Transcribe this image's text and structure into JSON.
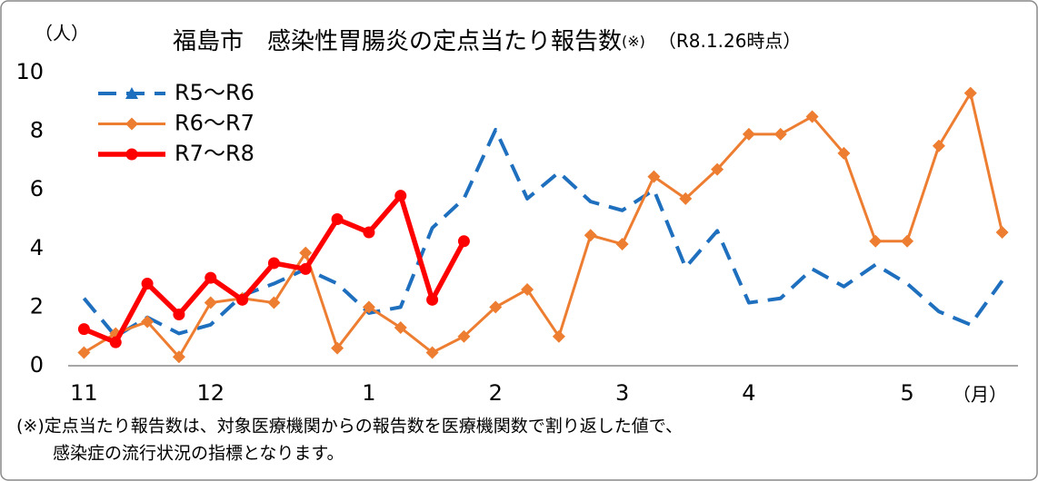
{
  "chart_data": {
    "type": "line",
    "title": "福島市　感染性胃腸炎の定点当たり報告数",
    "title_note": "(※)",
    "subtitle": "（R8.1.26時点）",
    "y_unit": "（人）",
    "x_unit": "（月）",
    "categories": [
      "11",
      null,
      null,
      null,
      "12",
      null,
      null,
      null,
      null,
      "1",
      null,
      null,
      null,
      "2",
      null,
      null,
      null,
      "3",
      null,
      null,
      null,
      "4",
      null,
      null,
      null,
      null,
      "5",
      null,
      null,
      null
    ],
    "ylim": [
      0,
      10
    ],
    "yticks": [
      0,
      2,
      4,
      6,
      8,
      10
    ],
    "grid": false,
    "legend": "top-left",
    "series": [
      {
        "name": "R5～R6",
        "color": "#1f6fbf",
        "dashed": true,
        "marker": "none",
        "values": [
          2.3,
          1.0,
          1.65,
          1.1,
          1.4,
          2.4,
          2.8,
          3.3,
          2.8,
          1.8,
          2.0,
          4.7,
          5.7,
          8.05,
          5.7,
          6.6,
          5.6,
          5.3,
          6.0,
          3.35,
          4.6,
          2.15,
          2.3,
          3.3,
          2.7,
          3.45,
          2.8,
          1.85,
          1.4,
          2.9
        ]
      },
      {
        "name": "R6～R7",
        "color": "#ed7d31",
        "dashed": false,
        "marker": "diamond",
        "values": [
          0.45,
          1.1,
          1.5,
          0.3,
          2.15,
          2.3,
          2.15,
          3.85,
          0.6,
          2.0,
          1.3,
          0.45,
          1.0,
          2.0,
          2.6,
          1.0,
          4.45,
          4.15,
          6.45,
          5.7,
          6.7,
          7.9,
          7.9,
          8.5,
          7.25,
          4.25,
          4.25,
          7.5,
          9.3,
          4.55
        ]
      },
      {
        "name": "R7～R8",
        "color": "#ff0000",
        "dashed": false,
        "marker": "circle",
        "values": [
          1.25,
          0.8,
          2.8,
          1.75,
          3.0,
          2.25,
          3.5,
          3.3,
          5.0,
          4.55,
          5.8,
          2.25,
          4.25,
          null,
          null,
          null,
          null,
          null,
          null,
          null,
          null,
          null,
          null,
          null,
          null,
          null,
          null,
          null,
          null,
          null
        ]
      }
    ],
    "footnote": [
      "(※)定点当たり報告数は、対象医療機関からの報告数を医療機関数で割り返した値で、",
      "感染症の流行状況の指標となります。"
    ]
  }
}
